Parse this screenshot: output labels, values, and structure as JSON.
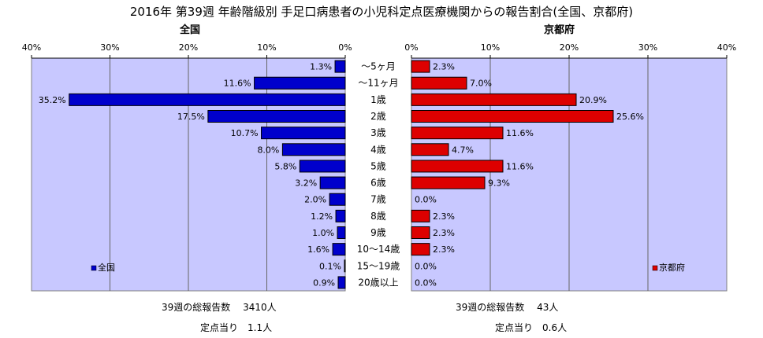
{
  "title": "2016年 第39週 年齢階級別 手足口病患者の小児科定点医療機関からの報告割合(全国、京都府)",
  "left_panel_label": "全国",
  "right_panel_label": "京都府",
  "colors": {
    "plot_bg": "#c8c8ff",
    "national_bar": "#0000cc",
    "kyoto_bar": "#dd0000",
    "bar_outline": "#000000"
  },
  "chart_data": [
    {
      "type": "bar",
      "orientation": "horizontal",
      "direction": "right-to-left",
      "panel": "left",
      "title": "全国",
      "categories": [
        "〜5ヶ月",
        "〜11ヶ月",
        "1歳",
        "2歳",
        "3歳",
        "4歳",
        "5歳",
        "6歳",
        "7歳",
        "8歳",
        "9歳",
        "10〜14歳",
        "15〜19歳",
        "20歳以上"
      ],
      "values": [
        1.3,
        11.6,
        35.2,
        17.5,
        10.7,
        8.0,
        5.8,
        3.2,
        2.0,
        1.2,
        1.0,
        1.6,
        0.1,
        0.9
      ],
      "value_labels": [
        "1.3%",
        "11.6%",
        "35.2%",
        "17.5%",
        "10.7%",
        "8.0%",
        "5.8%",
        "3.2%",
        "2.0%",
        "1.2%",
        "1.0%",
        "1.6%",
        "0.1%",
        "0.9%"
      ],
      "series": [
        {
          "name": "全国"
        }
      ],
      "xlim": [
        0,
        40
      ],
      "xticks": [
        "40%",
        "30%",
        "20%",
        "10%",
        "0%"
      ],
      "legend": "bottom-left",
      "grid": true
    },
    {
      "type": "bar",
      "orientation": "horizontal",
      "direction": "left-to-right",
      "panel": "right",
      "title": "京都府",
      "categories": [
        "〜5ヶ月",
        "〜11ヶ月",
        "1歳",
        "2歳",
        "3歳",
        "4歳",
        "5歳",
        "6歳",
        "7歳",
        "8歳",
        "9歳",
        "10〜14歳",
        "15〜19歳",
        "20歳以上"
      ],
      "values": [
        2.3,
        7.0,
        20.9,
        25.6,
        11.6,
        4.7,
        11.6,
        9.3,
        0.0,
        2.3,
        2.3,
        2.3,
        0.0,
        0.0
      ],
      "value_labels": [
        "2.3%",
        "7.0%",
        "20.9%",
        "25.6%",
        "11.6%",
        "4.7%",
        "11.6%",
        "9.3%",
        "0.0%",
        "2.3%",
        "2.3%",
        "2.3%",
        "0.0%",
        "0.0%"
      ],
      "series": [
        {
          "name": "京都府"
        }
      ],
      "xlim": [
        0,
        40
      ],
      "xticks": [
        "0%",
        "10%",
        "20%",
        "30%",
        "40%"
      ],
      "legend": "bottom-right",
      "grid": true
    }
  ],
  "footer": {
    "national_total": "39週の総報告数　 3410人",
    "national_per_site": "定点当り　1.1人",
    "kyoto_total": "39週の総報告数　 43人",
    "kyoto_per_site": "定点当り　0.6人"
  }
}
